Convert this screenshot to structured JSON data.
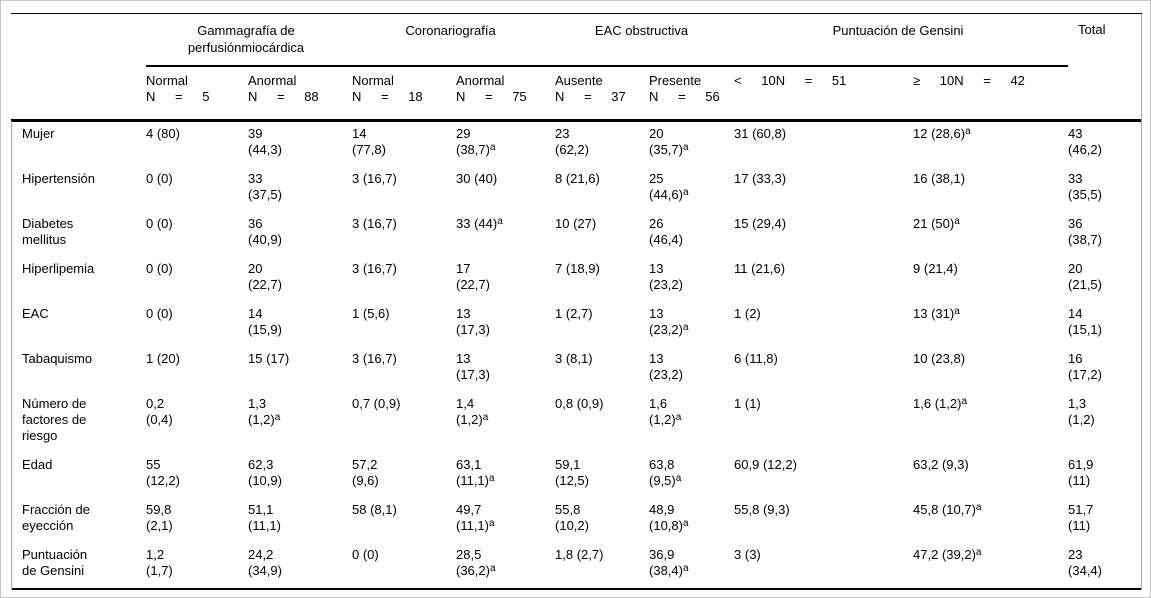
{
  "table": {
    "col_groups": [
      {
        "label": "Gammagrafía de perfusiónmiocárdica",
        "span": 2
      },
      {
        "label": "Coronariografía",
        "span": 2
      },
      {
        "label": "EAC obstructiva",
        "span": 2
      },
      {
        "label": "Puntuación de Gensini",
        "span": 2
      },
      {
        "label": "Total",
        "span": 1
      }
    ],
    "sub_headers": [
      "Normal\nN = 5",
      "Anormal\nN = 88",
      "Normal\nN = 18",
      "Anormal\nN = 75",
      "Ausente\nN = 37",
      "Presente\nN = 56",
      "< 10N = 51",
      "≥ 10N = 42"
    ],
    "footnote_marker": "a",
    "rows": [
      {
        "label": "Mujer",
        "cells": [
          "4 (80)",
          "39\n(44,3)",
          "14\n(77,8)",
          "29\n(38,7)^a",
          "23\n(62,2)",
          "20\n(35,7)^a",
          "31 (60,8)",
          "12 (28,6)^a",
          "43\n(46,2)"
        ]
      },
      {
        "label": "Hipertensión",
        "cells": [
          "0 (0)",
          "33\n(37,5)",
          "3 (16,7)",
          "30 (40)",
          "8 (21,6)",
          "25\n(44,6)^a",
          "17 (33,3)",
          "16 (38,1)",
          "33\n(35,5)"
        ]
      },
      {
        "label": "Diabetes\nmellitus",
        "cells": [
          "0 (0)",
          "36\n(40,9)",
          "3 (16,7)",
          "33 (44)^a",
          "10 (27)",
          "26\n(46,4)",
          "15 (29,4)",
          "21 (50)^a",
          "36\n(38,7)"
        ]
      },
      {
        "label": "Hiperlipemia",
        "cells": [
          "0 (0)",
          "20\n(22,7)",
          "3 (16,7)",
          "17\n(22,7)",
          "7 (18,9)",
          "13\n(23,2)",
          "11 (21,6)",
          "9 (21,4)",
          "20\n(21,5)"
        ]
      },
      {
        "label": "EAC",
        "cells": [
          "0 (0)",
          "14\n(15,9)",
          "1 (5,6)",
          "13\n(17,3)",
          "1 (2,7)",
          "13\n(23,2)^a",
          "1 (2)",
          "13 (31)^a",
          "14\n(15,1)"
        ]
      },
      {
        "label": "Tabaquismo",
        "cells": [
          "1 (20)",
          "15 (17)",
          "3 (16,7)",
          "13\n(17,3)",
          "3 (8,1)",
          "13\n(23,2)",
          "6 (11,8)",
          "10 (23,8)",
          "16\n(17,2)"
        ]
      },
      {
        "label": "Número de\nfactores de\nriesgo",
        "cells": [
          "0,2\n(0,4)",
          "1,3\n(1,2)^a",
          "0,7 (0,9)",
          "1,4\n(1,2)^a",
          "0,8 (0,9)",
          "1,6\n(1,2)^a",
          "1 (1)",
          "1,6 (1,2)^a",
          "1,3\n(1,2)"
        ]
      },
      {
        "label": "Edad",
        "cells": [
          "55\n(12,2)",
          "62,3\n(10,9)",
          "57,2\n(9,6)",
          "63,1\n(11,1)^a",
          "59,1\n(12,5)",
          "63,8\n(9,5)^a",
          "60,9 (12,2)",
          "63,2 (9,3)",
          "61,9\n(11)"
        ]
      },
      {
        "label": "Fracción de\neyección",
        "cells": [
          "59,8\n(2,1)",
          "51,1\n(11,1)",
          "58 (8,1)",
          "49,7\n(11,1)^a",
          "55,8\n(10,2)",
          "48,9\n(10,8)^a",
          "55,8 (9,3)",
          "45,8 (10,7)^a",
          "51,7\n(11)"
        ]
      },
      {
        "label": "Puntuación\nde Gensini",
        "cells": [
          "1,2\n(1,7)",
          "24,2\n(34,9)",
          "0 (0)",
          "28,5\n(36,2)^a",
          "1,8 (2,7)",
          "36,9\n(38,4)^a",
          "3 (3)",
          "47,2 (39,2)^a",
          "23\n(34,4)"
        ]
      }
    ]
  }
}
